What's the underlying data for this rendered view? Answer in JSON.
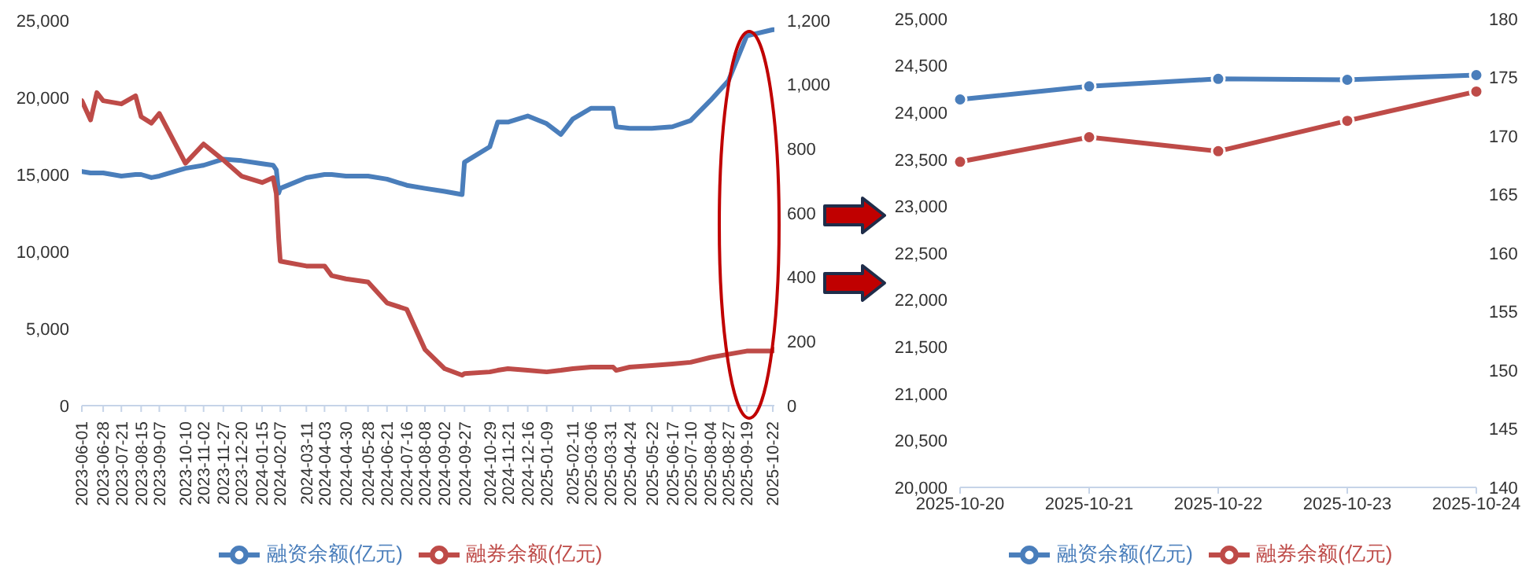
{
  "chart_data": [
    {
      "type": "line",
      "x": [
        "2023-06-01",
        "2023-06-12",
        "2023-06-20",
        "2023-06-28",
        "2023-07-21",
        "2023-08-08",
        "2023-08-15",
        "2023-08-28",
        "2023-09-07",
        "2023-10-10",
        "2023-11-02",
        "2023-11-27",
        "2023-12-20",
        "2024-01-15",
        "2024-01-29",
        "2024-02-02",
        "2024-02-05",
        "2024-02-07",
        "2024-03-11",
        "2024-04-03",
        "2024-04-12",
        "2024-04-30",
        "2024-05-28",
        "2024-06-21",
        "2024-07-16",
        "2024-08-08",
        "2024-09-02",
        "2024-09-24",
        "2024-09-27",
        "2024-10-29",
        "2024-11-08",
        "2024-11-21",
        "2024-12-16",
        "2025-01-09",
        "2025-01-27",
        "2025-02-11",
        "2025-03-06",
        "2025-04-03",
        "2025-04-07",
        "2025-04-24",
        "2025-05-22",
        "2025-06-17",
        "2025-07-10",
        "2025-08-04",
        "2025-08-27",
        "2025-09-19",
        "2025-10-22",
        "2025-10-24"
      ],
      "series": [
        {
          "name": "融资余额(亿元)",
          "color": "#4a7ebb",
          "values": [
            15200,
            15100,
            15100,
            15100,
            14900,
            15000,
            15000,
            14800,
            14900,
            15400,
            15600,
            16000,
            15900,
            15700,
            15600,
            15300,
            13800,
            14100,
            14800,
            15000,
            15000,
            14900,
            14900,
            14700,
            14300,
            14100,
            13900,
            13700,
            15800,
            16800,
            18400,
            18400,
            18800,
            18300,
            17600,
            18600,
            19300,
            19300,
            18100,
            18000,
            18000,
            18100,
            18500,
            19800,
            21100,
            24000,
            24400,
            24400
          ]
        },
        {
          "name": "融券余额(亿元)",
          "color": "#be4b48",
          "axis": "y2",
          "values": [
            950,
            890,
            975,
            950,
            940,
            965,
            900,
            880,
            910,
            755,
            815,
            765,
            715,
            695,
            710,
            660,
            520,
            450,
            435,
            435,
            405,
            395,
            385,
            320,
            300,
            175,
            115,
            95,
            100,
            105,
            110,
            115,
            110,
            105,
            110,
            115,
            120,
            120,
            110,
            120,
            125,
            130,
            135,
            150,
            160,
            170,
            170,
            175
          ]
        }
      ],
      "xlim": [
        "2023-06-01",
        "2025-10-24"
      ],
      "xticks": [
        "2023-06-01",
        "2023-06-28",
        "2023-07-21",
        "2023-08-15",
        "2023-09-07",
        "2023-10-10",
        "2023-11-02",
        "2023-11-27",
        "2023-12-20",
        "2024-01-15",
        "2024-02-07",
        "2024-03-11",
        "2024-04-03",
        "2024-04-30",
        "2024-05-28",
        "2024-06-21",
        "2024-07-16",
        "2024-08-08",
        "2024-09-02",
        "2024-09-27",
        "2024-10-29",
        "2024-11-21",
        "2024-12-16",
        "2025-01-09",
        "2025-02-11",
        "2025-03-06",
        "2025-03-31",
        "2025-04-24",
        "2025-05-22",
        "2025-06-17",
        "2025-07-10",
        "2025-08-04",
        "2025-08-27",
        "2025-09-19",
        "2025-10-22"
      ],
      "ylim": [
        0,
        25000
      ],
      "yticks": [
        0,
        {
          "value": 5000,
          "label": "5,000"
        },
        {
          "value": 10000,
          "label": "10,000"
        },
        {
          "value": 15000,
          "label": "15,000"
        },
        {
          "value": 20000,
          "label": "20,000"
        },
        {
          "value": 25000,
          "label": "25,000"
        }
      ],
      "y2lim": [
        0,
        1200
      ],
      "y2ticks": [
        0,
        200,
        400,
        600,
        800,
        {
          "value": 1000,
          "label": "1,000"
        },
        {
          "value": 1200,
          "label": "1,200"
        }
      ],
      "legend": "bottom",
      "grid": false
    },
    {
      "type": "line",
      "categories": [
        "2025-10-20",
        "2025-10-21",
        "2025-10-22",
        "2025-10-23",
        "2025-10-24"
      ],
      "series": [
        {
          "name": "融资余额(亿元)",
          "color": "#4a7ebb",
          "values": [
            24140,
            24280,
            24360,
            24350,
            24400
          ]
        },
        {
          "name": "融券余额(亿元)",
          "color": "#be4b48",
          "axis": "y2",
          "values": [
            167.8,
            169.9,
            168.7,
            171.3,
            173.8
          ]
        }
      ],
      "ylim": [
        20000,
        25000
      ],
      "yticks": [
        {
          "value": 20000,
          "label": "20,000"
        },
        {
          "value": 20500,
          "label": "20,500"
        },
        {
          "value": 21000,
          "label": "21,000"
        },
        {
          "value": 21500,
          "label": "21,500"
        },
        {
          "value": 22000,
          "label": "22,000"
        },
        {
          "value": 22500,
          "label": "22,500"
        },
        {
          "value": 23000,
          "label": "23,000"
        },
        {
          "value": 23500,
          "label": "23,500"
        },
        {
          "value": 24000,
          "label": "24,000"
        },
        {
          "value": 24500,
          "label": "24,500"
        },
        {
          "value": 25000,
          "label": "25,000"
        }
      ],
      "y2lim": [
        140,
        180
      ],
      "y2ticks": [
        140,
        145,
        150,
        155,
        160,
        165,
        170,
        175,
        180
      ],
      "legend": "bottom",
      "grid": false,
      "marker": "circle"
    }
  ]
}
